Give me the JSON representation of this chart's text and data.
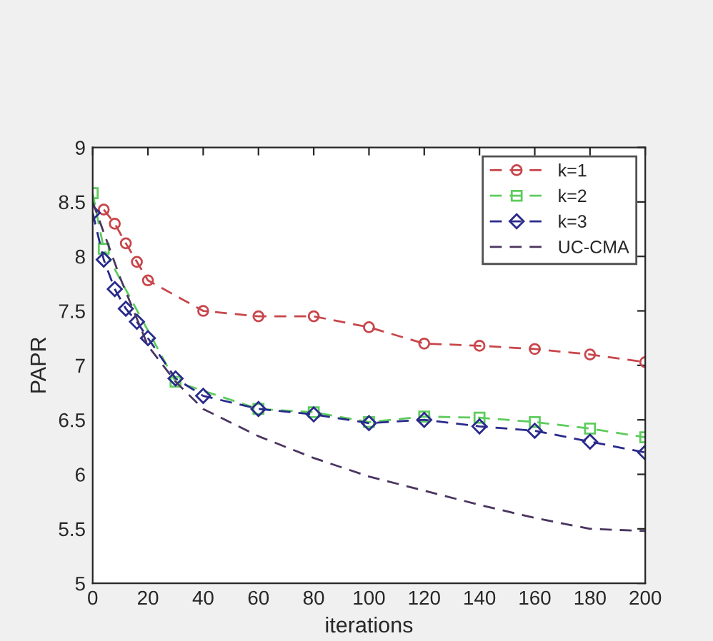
{
  "chart_data": {
    "type": "line",
    "xlabel": "iterations",
    "ylabel": "PAPR",
    "xlim": [
      0,
      200
    ],
    "ylim": [
      5,
      9
    ],
    "xticks": [
      0,
      20,
      40,
      60,
      80,
      100,
      120,
      140,
      160,
      180,
      200
    ],
    "yticks": [
      5,
      5.5,
      6,
      6.5,
      7,
      7.5,
      8,
      8.5,
      9
    ],
    "grid": false,
    "legend": "top right",
    "line_style": "dashed",
    "series": [
      {
        "name": "k=1",
        "color": "#c8464b",
        "marker": "circle",
        "x": [
          4,
          8,
          12,
          16,
          20,
          40,
          60,
          80,
          100,
          120,
          140,
          160,
          180,
          200
        ],
        "values": [
          8.43,
          8.3,
          8.12,
          7.95,
          7.78,
          7.5,
          7.45,
          7.45,
          7.35,
          7.2,
          7.18,
          7.15,
          7.1,
          7.03
        ]
      },
      {
        "name": "k=2",
        "color": "#5dcc5d",
        "marker": "square",
        "x": [
          0,
          4,
          30,
          60,
          80,
          100,
          120,
          140,
          160,
          180,
          200
        ],
        "values": [
          8.58,
          8.07,
          6.85,
          6.6,
          6.57,
          6.48,
          6.53,
          6.52,
          6.48,
          6.42,
          6.34
        ]
      },
      {
        "name": "k=3",
        "color": "#2a2a8c",
        "marker": "diamond",
        "x": [
          0,
          4,
          8,
          12,
          16,
          20,
          30,
          40,
          60,
          80,
          100,
          120,
          140,
          160,
          180,
          200
        ],
        "values": [
          8.4,
          7.97,
          7.7,
          7.52,
          7.4,
          7.25,
          6.88,
          6.72,
          6.6,
          6.55,
          6.47,
          6.5,
          6.44,
          6.4,
          6.3,
          6.2
        ]
      },
      {
        "name": "UC-CMA",
        "color": "#4a3560",
        "marker": "none",
        "x": [
          0,
          10,
          20,
          30,
          40,
          60,
          80,
          100,
          120,
          140,
          160,
          180,
          200
        ],
        "values": [
          8.5,
          7.8,
          7.18,
          6.85,
          6.6,
          6.35,
          6.15,
          5.98,
          5.85,
          5.72,
          5.6,
          5.5,
          5.48
        ]
      }
    ]
  }
}
